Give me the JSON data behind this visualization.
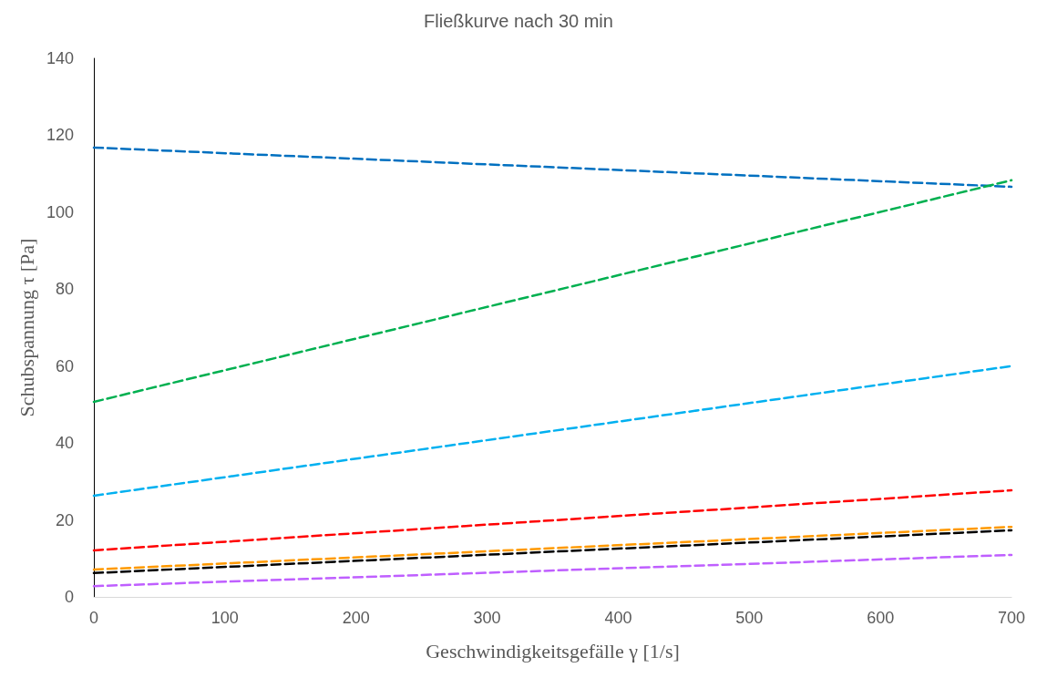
{
  "chart_data": {
    "type": "line",
    "title": "Fließkurve nach 30 min",
    "xlabel": "Geschwindigkeitsgefälle γ [1/s]",
    "ylabel": "Schubspannung τ [Pa]",
    "x": [
      0,
      700
    ],
    "series": [
      {
        "color": "#0070c0",
        "values": [
          116.8,
          106.6
        ]
      },
      {
        "color": "#00b050",
        "values": [
          50.7,
          108.3
        ]
      },
      {
        "color": "#00b0f0",
        "values": [
          26.3,
          60.0
        ]
      },
      {
        "color": "#ff0000",
        "values": [
          12.1,
          27.7
        ]
      },
      {
        "color": "#ff9900",
        "values": [
          7.1,
          18.2
        ]
      },
      {
        "color": "#000000",
        "values": [
          6.2,
          17.3
        ]
      },
      {
        "color": "#bf5fff",
        "values": [
          2.8,
          10.9
        ]
      }
    ],
    "xlim": [
      0,
      700
    ],
    "xticks": [
      0,
      100,
      200,
      300,
      400,
      500,
      600,
      700
    ],
    "ylim": [
      0,
      140
    ],
    "yticks": [
      0,
      20,
      40,
      60,
      80,
      100,
      120,
      140
    ],
    "grid": false,
    "marker": "none",
    "line_style": "dashed"
  }
}
